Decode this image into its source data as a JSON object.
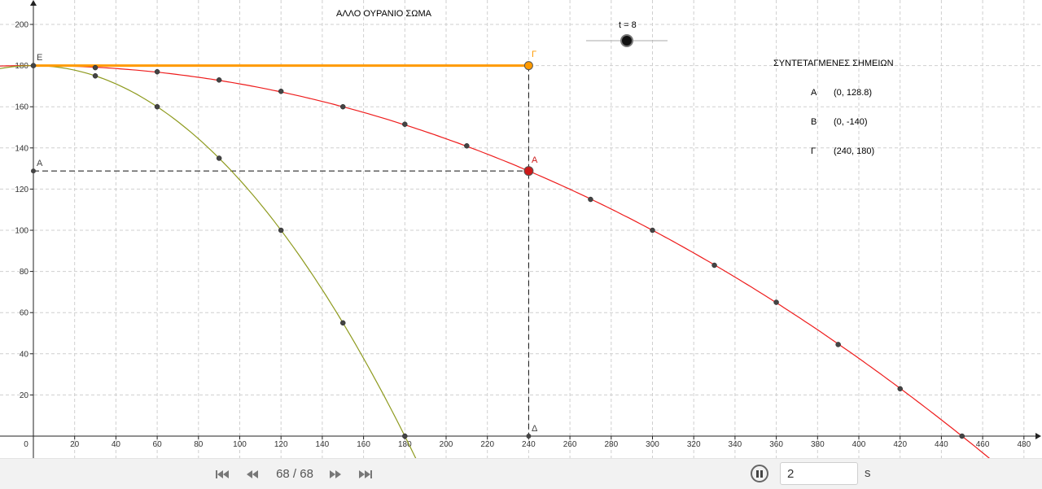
{
  "graph": {
    "title": "ΑΛΛΟ ΟΥΡΑΝΙΟ ΣΩΜΑ",
    "slider": {
      "label": "t = 8",
      "value": 8,
      "min": 0,
      "max": 16
    },
    "coordinates_panel": {
      "heading": "ΣΥΝΤΕΤΑΓΜΕΝΕΣ ΣΗΜΕΙΩΝ",
      "rows": [
        {
          "name": "Α",
          "coords": "(0, 128.8)"
        },
        {
          "name": "Β",
          "coords": "(0, -140)"
        },
        {
          "name": "Γ",
          "coords": "(240, 180)"
        }
      ]
    },
    "point_labels": {
      "A_moving": "Α",
      "A_axis": "Α",
      "E": "Ε",
      "Gamma": "Γ",
      "Delta": "Δ"
    },
    "colors": {
      "red_curve": "#ee1c1c",
      "green_curve": "#8e9a1e",
      "orange_line": "#ff9a00",
      "grid": "#cfcfcf",
      "point_dark": "#444444",
      "point_red": "#cc1a1a"
    }
  },
  "chart_data": {
    "type": "scatter",
    "xlim": [
      -16,
      485
    ],
    "ylim": [
      -10,
      210
    ],
    "x_ticks": [
      20,
      40,
      60,
      80,
      100,
      120,
      140,
      160,
      180,
      200,
      220,
      240,
      260,
      280,
      300,
      320,
      340,
      360,
      380,
      400,
      420,
      440,
      460,
      480
    ],
    "y_ticks": [
      20,
      40,
      60,
      80,
      100,
      120,
      140,
      160,
      180,
      200
    ],
    "origin_label": "0",
    "grid": true,
    "series": [
      {
        "values": [
          [
            0,
            180
          ],
          [
            30,
            179
          ],
          [
            60,
            177
          ],
          [
            90,
            173
          ],
          [
            120,
            167.5
          ],
          [
            150,
            160
          ],
          [
            180,
            151.5
          ],
          [
            210,
            141
          ],
          [
            240,
            128.8
          ],
          [
            270,
            115
          ],
          [
            300,
            100
          ],
          [
            330,
            83
          ],
          [
            360,
            65
          ],
          [
            390,
            44.5
          ],
          [
            420,
            23
          ],
          [
            450,
            0
          ]
        ]
      },
      {
        "values": [
          [
            0,
            180
          ],
          [
            30,
            175
          ],
          [
            60,
            160
          ],
          [
            90,
            135
          ],
          [
            120,
            100
          ],
          [
            150,
            55
          ],
          [
            180,
            0
          ]
        ]
      }
    ],
    "horizontal_line": {
      "y": 180,
      "x_from": 0,
      "x_to": 240
    },
    "points": {
      "A_moving": [
        240,
        128.8
      ],
      "A_axis": [
        0,
        128.8
      ],
      "E": [
        0,
        180
      ],
      "Gamma": [
        240,
        180
      ],
      "Delta": [
        240,
        0
      ]
    }
  },
  "controls": {
    "step_counter": "68 / 68",
    "speed_value": "2",
    "speed_unit": "s",
    "icons": [
      "skip-to-start-icon",
      "step-back-icon",
      "step-forward-icon",
      "skip-to-end-icon",
      "pause-icon"
    ]
  }
}
